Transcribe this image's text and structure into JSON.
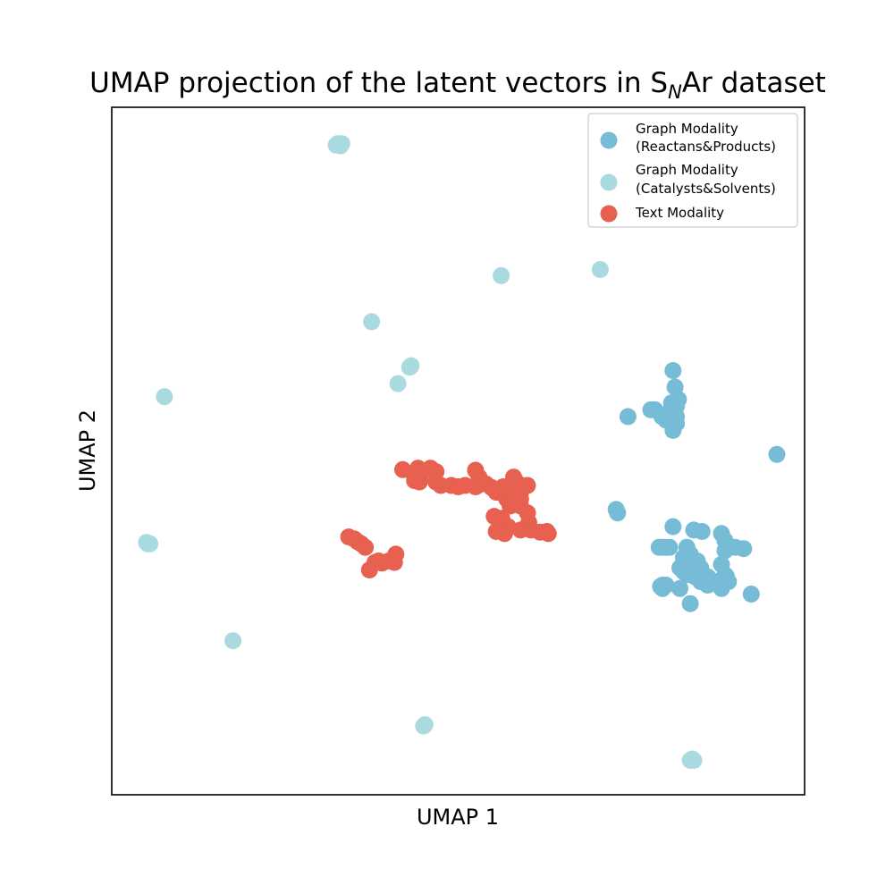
{
  "chart_data": {
    "type": "scatter",
    "title": {
      "prefix": "UMAP projection of the latent vectors in S",
      "subscript": "N",
      "suffix": "Ar dataset"
    },
    "xlabel": "UMAP 1",
    "ylabel": "UMAP 2",
    "xlim": [
      0,
      1
    ],
    "ylim": [
      0,
      1
    ],
    "ticks": "none",
    "grid": false,
    "legend_position": "top-right",
    "series": [
      {
        "name_lines": [
          "Graph Modality",
          "(Reactans&Products)"
        ],
        "color": "#76bcd6",
        "points": [
          [
            0.81,
            0.617
          ],
          [
            0.813,
            0.593
          ],
          [
            0.818,
            0.575
          ],
          [
            0.815,
            0.565
          ],
          [
            0.807,
            0.56
          ],
          [
            0.815,
            0.55
          ],
          [
            0.81,
            0.53
          ],
          [
            0.8,
            0.55
          ],
          [
            0.784,
            0.56
          ],
          [
            0.778,
            0.56
          ],
          [
            0.794,
            0.55
          ],
          [
            0.8,
            0.545
          ],
          [
            0.808,
            0.57
          ],
          [
            0.815,
            0.54
          ],
          [
            0.745,
            0.55
          ],
          [
            0.96,
            0.495
          ],
          [
            0.728,
            0.415
          ],
          [
            0.73,
            0.41
          ],
          [
            0.81,
            0.39
          ],
          [
            0.84,
            0.385
          ],
          [
            0.852,
            0.383
          ],
          [
            0.88,
            0.38
          ],
          [
            0.885,
            0.37
          ],
          [
            0.885,
            0.355
          ],
          [
            0.88,
            0.335
          ],
          [
            0.885,
            0.32
          ],
          [
            0.875,
            0.31
          ],
          [
            0.86,
            0.305
          ],
          [
            0.847,
            0.32
          ],
          [
            0.837,
            0.33
          ],
          [
            0.825,
            0.335
          ],
          [
            0.82,
            0.33
          ],
          [
            0.8,
            0.36
          ],
          [
            0.79,
            0.36
          ],
          [
            0.795,
            0.36
          ],
          [
            0.83,
            0.36
          ],
          [
            0.835,
            0.35
          ],
          [
            0.825,
            0.345
          ],
          [
            0.825,
            0.325
          ],
          [
            0.842,
            0.317
          ],
          [
            0.82,
            0.3
          ],
          [
            0.795,
            0.3
          ],
          [
            0.83,
            0.32
          ],
          [
            0.85,
            0.31
          ],
          [
            0.9,
            0.36
          ],
          [
            0.805,
            0.36
          ],
          [
            0.8,
            0.305
          ],
          [
            0.89,
            0.31
          ],
          [
            0.88,
            0.3
          ],
          [
            0.87,
            0.31
          ],
          [
            0.855,
            0.318
          ],
          [
            0.85,
            0.33
          ],
          [
            0.845,
            0.34
          ],
          [
            0.912,
            0.358
          ],
          [
            0.835,
            0.278
          ],
          [
            0.887,
            0.318
          ],
          [
            0.792,
            0.303
          ],
          [
            0.923,
            0.292
          ],
          [
            0.795,
            0.305
          ],
          [
            0.868,
            0.308
          ],
          [
            0.86,
            0.317
          ],
          [
            0.855,
            0.31
          ]
        ]
      },
      {
        "name_lines": [
          "Graph Modality",
          "(Catalysts&Solvents)"
        ],
        "color": "#a8dadf",
        "points": [
          [
            0.326,
            0.947
          ],
          [
            0.324,
            0.945
          ],
          [
            0.33,
            0.944
          ],
          [
            0.332,
            0.947
          ],
          [
            0.562,
            0.755
          ],
          [
            0.705,
            0.764
          ],
          [
            0.375,
            0.688
          ],
          [
            0.432,
            0.624
          ],
          [
            0.43,
            0.622
          ],
          [
            0.413,
            0.598
          ],
          [
            0.076,
            0.579
          ],
          [
            0.052,
            0.365
          ],
          [
            0.055,
            0.365
          ],
          [
            0.05,
            0.367
          ],
          [
            0.175,
            0.224
          ],
          [
            0.45,
            0.1
          ],
          [
            0.452,
            0.102
          ],
          [
            0.835,
            0.05
          ],
          [
            0.838,
            0.052
          ],
          [
            0.84,
            0.05
          ]
        ]
      },
      {
        "name_lines": [
          "Text Modality"
        ],
        "color": "#e8604f",
        "points": [
          [
            0.435,
            0.468
          ],
          [
            0.442,
            0.475
          ],
          [
            0.448,
            0.47
          ],
          [
            0.437,
            0.457
          ],
          [
            0.444,
            0.455
          ],
          [
            0.445,
            0.46
          ],
          [
            0.46,
            0.475
          ],
          [
            0.468,
            0.47
          ],
          [
            0.468,
            0.455
          ],
          [
            0.475,
            0.45
          ],
          [
            0.49,
            0.45
          ],
          [
            0.5,
            0.448
          ],
          [
            0.51,
            0.45
          ],
          [
            0.525,
            0.448
          ],
          [
            0.528,
            0.45
          ],
          [
            0.525,
            0.472
          ],
          [
            0.53,
            0.462
          ],
          [
            0.54,
            0.452
          ],
          [
            0.548,
            0.447
          ],
          [
            0.565,
            0.448
          ],
          [
            0.58,
            0.443
          ],
          [
            0.584,
            0.455
          ],
          [
            0.58,
            0.462
          ],
          [
            0.59,
            0.44
          ],
          [
            0.6,
            0.45
          ],
          [
            0.59,
            0.43
          ],
          [
            0.575,
            0.42
          ],
          [
            0.59,
            0.42
          ],
          [
            0.6,
            0.41
          ],
          [
            0.602,
            0.396
          ],
          [
            0.59,
            0.385
          ],
          [
            0.605,
            0.385
          ],
          [
            0.618,
            0.382
          ],
          [
            0.63,
            0.38
          ],
          [
            0.628,
            0.383
          ],
          [
            0.572,
            0.39
          ],
          [
            0.563,
            0.402
          ],
          [
            0.567,
            0.38
          ],
          [
            0.555,
            0.383
          ],
          [
            0.552,
            0.405
          ],
          [
            0.57,
            0.43
          ],
          [
            0.555,
            0.44
          ],
          [
            0.58,
            0.45
          ],
          [
            0.42,
            0.473
          ],
          [
            0.342,
            0.375
          ],
          [
            0.35,
            0.372
          ],
          [
            0.355,
            0.368
          ],
          [
            0.36,
            0.365
          ],
          [
            0.366,
            0.36
          ],
          [
            0.38,
            0.338
          ],
          [
            0.39,
            0.337
          ],
          [
            0.4,
            0.34
          ],
          [
            0.408,
            0.338
          ],
          [
            0.41,
            0.35
          ],
          [
            0.372,
            0.327
          ],
          [
            0.385,
            0.34
          ]
        ]
      }
    ]
  }
}
